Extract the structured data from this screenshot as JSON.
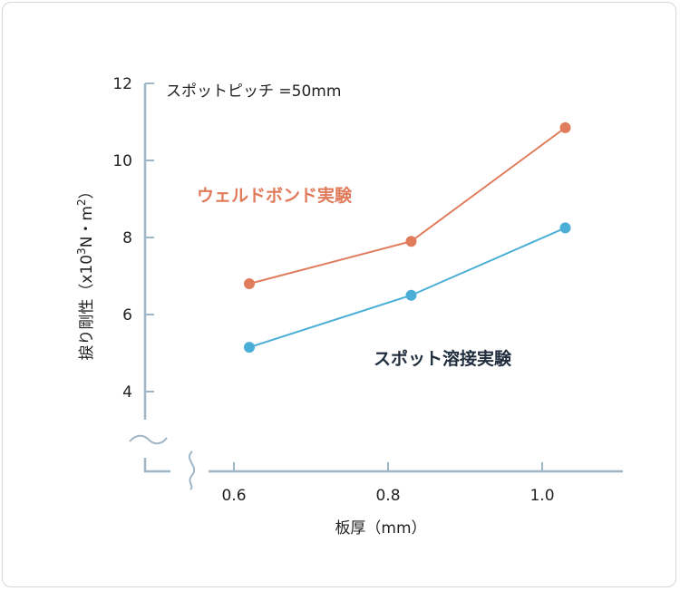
{
  "chart_data": {
    "type": "line",
    "annotation": "スポットピッチ =50mm",
    "xlabel": "板厚（mm）",
    "ylabel_main": "捩り剛性（x10",
    "ylabel_exp1": "3",
    "ylabel_mid": "N・m",
    "ylabel_exp2": "2",
    "ylabel_end": "）",
    "x_ticks": [
      "0.6",
      "0.8",
      "1.0"
    ],
    "y_ticks": [
      "4",
      "6",
      "8",
      "10",
      "12"
    ],
    "xlim": [
      0.5,
      1.1
    ],
    "ylim": [
      4,
      12
    ],
    "axis_break": true,
    "grid": false,
    "series": [
      {
        "name": "ウェルドボンド実験",
        "color": "#e07b5b",
        "x": [
          0.62,
          0.83,
          1.03
        ],
        "y": [
          6.8,
          7.9,
          10.85
        ]
      },
      {
        "name": "スポット溶接実験",
        "color": "#4aaed6",
        "label_color": "#1f2d3d",
        "x": [
          0.62,
          0.83,
          1.03
        ],
        "y": [
          5.15,
          6.5,
          8.25
        ]
      }
    ],
    "axis_color": "#9fb6c6"
  }
}
